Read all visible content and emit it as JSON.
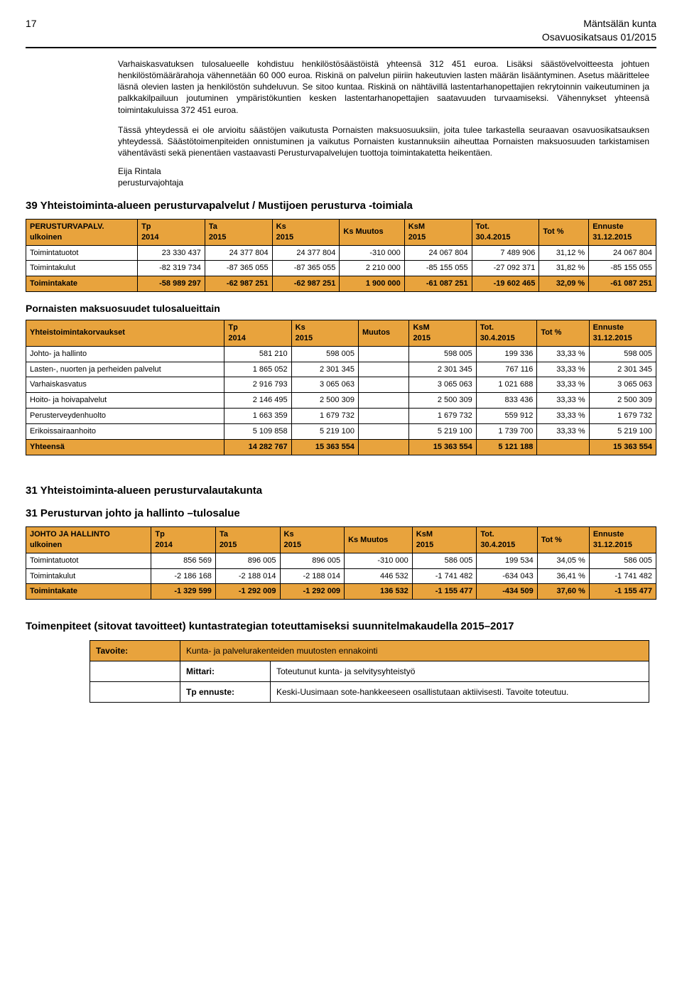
{
  "header": {
    "page_number": "17",
    "org_line1": "Mäntsälän kunta",
    "org_line2": "Osavuosikatsaus 01/2015"
  },
  "paragraphs": {
    "p1": "Varhaiskasvatuksen tulosalueelle kohdistuu henkilöstösäästöistä yhteensä 312 451 euroa. Lisäksi säästövelvoitteesta johtuen henkilöstömäärärahoja vähennetään 60 000 euroa. Riskinä on palvelun piiriin hakeutuvien lasten määrän lisääntyminen. Asetus määrittelee läsnä olevien lasten ja henkilöstön suhdeluvun. Se sitoo kuntaa. Riskinä on nähtävillä lastentarhanopettajien rekrytoinnin vaikeutuminen ja palkkakilpailuun joutuminen ympäristökuntien kesken lastentarhanopettajien saatavuuden turvaamiseksi. Vähennykset yhteensä toimintakuluissa 372 451 euroa.",
    "p2": "Tässä yhteydessä ei ole arvioitu säästöjen vaikutusta Pornaisten maksuosuuksiin, joita tulee tarkastella seuraavan osavuosikatsauksen yhteydessä. Säästötoimenpiteiden onnistuminen ja vaikutus Pornaisten kustannuksiin aiheuttaa Pornaisten maksuosuuden tarkistamisen vähentävästi sekä pienentäen vastaavasti Perusturvapalvelujen tuottoja toimintakatetta heikentäen.",
    "sig_name": "Eija Rintala",
    "sig_title": "perusturvajohtaja"
  },
  "section_titles": {
    "t39": "39 Yhteistoiminta-alueen perusturvapalvelut / Mustijoen perusturva -toimiala",
    "pornainen": "Pornaisten maksuosuudet tulosalueittain",
    "t31a": "31 Yhteistoiminta-alueen perusturvalautakunta",
    "t31b": "31 Perusturvan johto ja hallinto –tulosalue",
    "toimenpiteet": "Toimenpiteet (sitovat tavoitteet) kuntastrategian toteuttamiseksi suunnitelmakaudella 2015–2017"
  },
  "perusturva_table": {
    "head": [
      "PERUSTURVAPALV.\nulkoinen",
      "Tp\n2014",
      "Ta\n2015",
      "Ks\n2015",
      "Ks Muutos",
      "KsM\n2015",
      "Tot.\n30.4.2015",
      "Tot %",
      "Ennuste\n31.12.2015"
    ],
    "rows": [
      [
        "Toimintatuotot",
        "23 330 437",
        "24 377 804",
        "24 377 804",
        "-310 000",
        "24 067 804",
        "7 489 906",
        "31,12 %",
        "24 067 804"
      ],
      [
        "Toimintakulut",
        "-82 319 734",
        "-87 365 055",
        "-87 365 055",
        "2 210 000",
        "-85 155 055",
        "-27 092 371",
        "31,82 %",
        "-85 155 055"
      ]
    ],
    "total": [
      "Toimintakate",
      "-58 989 297",
      "-62 987 251",
      "-62 987 251",
      "1 900 000",
      "-61 087 251",
      "-19 602 465",
      "32,09 %",
      "-61 087 251"
    ]
  },
  "pornainen_table": {
    "head": [
      "Yhteistoimintakorvaukset",
      "Tp\n2014",
      "Ks\n2015",
      "Muutos",
      "KsM\n2015",
      "Tot.\n30.4.2015",
      "Tot %",
      "Ennuste\n31.12.2015"
    ],
    "rows": [
      [
        "Johto- ja hallinto",
        "581 210",
        "598 005",
        "",
        "598 005",
        "199 336",
        "33,33 %",
        "598 005"
      ],
      [
        "Lasten-, nuorten ja perheiden palvelut",
        "1 865 052",
        "2 301 345",
        "",
        "2 301 345",
        "767 116",
        "33,33 %",
        "2 301 345"
      ],
      [
        "Varhaiskasvatus",
        "2 916 793",
        "3 065 063",
        "",
        "3 065 063",
        "1 021 688",
        "33,33 %",
        "3 065 063"
      ],
      [
        "Hoito- ja hoivapalvelut",
        "2 146 495",
        "2 500 309",
        "",
        "2 500 309",
        "833 436",
        "33,33 %",
        "2 500 309"
      ],
      [
        "Perusterveydenhuolto",
        "1 663 359",
        "1 679 732",
        "",
        "1 679 732",
        "559 912",
        "33,33 %",
        "1 679 732"
      ],
      [
        "Erikoissairaanhoito",
        "5 109 858",
        "5 219 100",
        "",
        "5 219 100",
        "1 739 700",
        "33,33 %",
        "5 219 100"
      ]
    ],
    "total": [
      "Yhteensä",
      "14 282 767",
      "15 363 554",
      "",
      "15 363 554",
      "5 121 188",
      "",
      "15 363 554"
    ]
  },
  "johto_table": {
    "head": [
      "JOHTO JA HALLINTO\nulkoinen",
      "Tp\n2014",
      "Ta\n2015",
      "Ks\n2015",
      "Ks Muutos",
      "KsM\n2015",
      "Tot.\n30.4.2015",
      "Tot %",
      "Ennuste\n31.12.2015"
    ],
    "rows": [
      [
        "Toimintatuotot",
        "856 569",
        "896 005",
        "896 005",
        "-310 000",
        "586 005",
        "199 534",
        "34,05 %",
        "586 005"
      ],
      [
        "Toimintakulut",
        "-2 186 168",
        "-2 188 014",
        "-2 188 014",
        "446 532",
        "-1 741 482",
        "-634 043",
        "36,41 %",
        "-1 741 482"
      ]
    ],
    "total": [
      "Toimintakate",
      "-1 329 599",
      "-1 292 009",
      "-1 292 009",
      "136 532",
      "-1 155 477",
      "-434 509",
      "37,60 %",
      "-1 155 477"
    ]
  },
  "tavoite": {
    "tavoite_label": "Tavoite:",
    "tavoite_text": "Kunta- ja palvelurakenteiden muutosten ennakointi",
    "mittari_label": "Mittari:",
    "mittari_text": "Toteutunut kunta- ja selvitysyhteistyö",
    "tpennuste_label": "Tp ennuste:",
    "tpennuste_text": "Keski-Uusimaan sote-hankkeeseen osallistutaan aktiivisesti. Tavoite toteutuu."
  },
  "colors": {
    "highlight": "#e8a33d",
    "text": "#000000",
    "background": "#ffffff"
  }
}
